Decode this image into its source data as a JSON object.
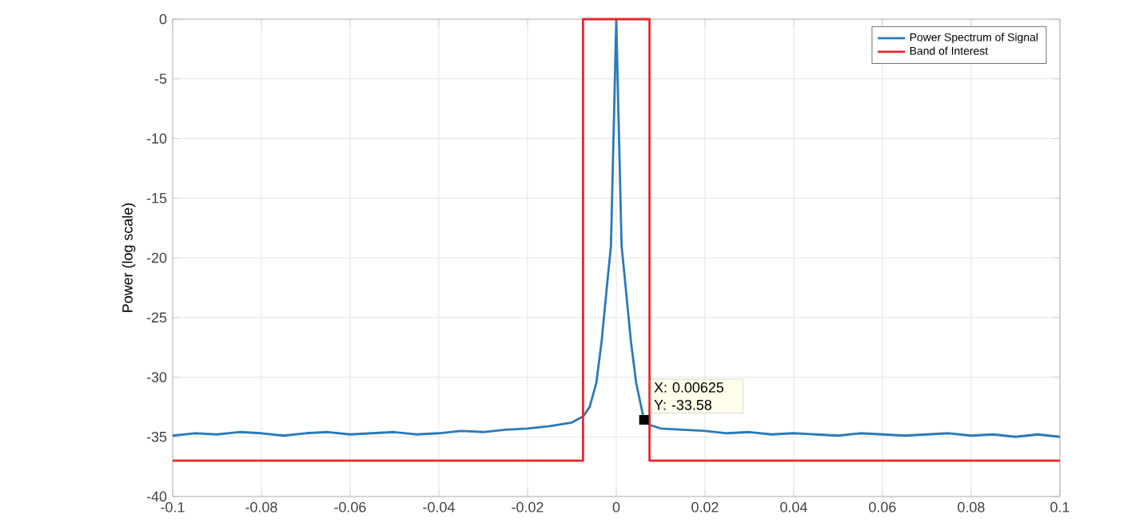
{
  "chart_data": {
    "type": "line",
    "ylabel": "Power (log scale)",
    "xlim": [
      -0.1,
      0.1
    ],
    "ylim": [
      -40,
      0
    ],
    "xticks": [
      -0.1,
      -0.08,
      -0.06,
      -0.04,
      -0.02,
      0,
      0.02,
      0.04,
      0.06,
      0.08,
      0.1
    ],
    "yticks": [
      -40,
      -35,
      -30,
      -25,
      -20,
      -15,
      -10,
      -5,
      0
    ],
    "grid": true,
    "legend": "top right",
    "series": [
      {
        "name": "Power Spectrum of Signal",
        "color": "#2a7ab8",
        "x": [
          -0.1,
          -0.095,
          -0.09,
          -0.085,
          -0.08,
          -0.075,
          -0.07,
          -0.065,
          -0.06,
          -0.055,
          -0.05,
          -0.045,
          -0.04,
          -0.035,
          -0.03,
          -0.025,
          -0.02,
          -0.015,
          -0.01,
          -0.0075,
          -0.006,
          -0.0045,
          -0.0033,
          -0.002,
          -0.0012,
          -0.0005,
          0,
          0.0005,
          0.0012,
          0.002,
          0.0033,
          0.0045,
          0.00625,
          0.0075,
          0.01,
          0.015,
          0.02,
          0.025,
          0.03,
          0.035,
          0.04,
          0.045,
          0.05,
          0.055,
          0.06,
          0.065,
          0.07,
          0.075,
          0.08,
          0.085,
          0.09,
          0.095,
          0.1
        ],
        "values": [
          -34.9,
          -34.7,
          -34.8,
          -34.6,
          -34.7,
          -34.9,
          -34.7,
          -34.6,
          -34.8,
          -34.7,
          -34.6,
          -34.8,
          -34.7,
          -34.5,
          -34.6,
          -34.4,
          -34.3,
          -34.1,
          -33.8,
          -33.3,
          -32.5,
          -30.5,
          -27.0,
          -22.0,
          -19.0,
          -8.0,
          0,
          -8.0,
          -19.0,
          -22.0,
          -27.0,
          -30.5,
          -33.58,
          -34.0,
          -34.3,
          -34.4,
          -34.5,
          -34.7,
          -34.6,
          -34.8,
          -34.7,
          -34.8,
          -34.9,
          -34.7,
          -34.8,
          -34.9,
          -34.8,
          -34.7,
          -34.9,
          -34.8,
          -35.0,
          -34.8,
          -35.0
        ]
      },
      {
        "name": "Band of Interest",
        "color": "#e8262b",
        "x": [
          -0.1,
          -0.0075,
          -0.0075,
          0.0075,
          0.0075,
          0.1
        ],
        "values": [
          -37,
          -37,
          0,
          0,
          -37,
          -37
        ]
      }
    ],
    "annotations": [
      {
        "text": "X: 0.00625 Y: -33.58",
        "x": 0.00625,
        "y": -33.58
      }
    ]
  }
}
